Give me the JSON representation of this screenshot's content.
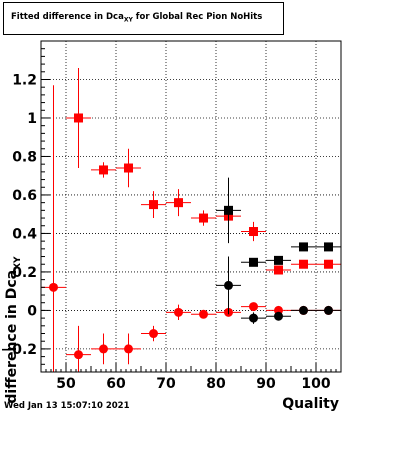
{
  "chart_data": {
    "type": "scatter",
    "title": "Fitted difference in Dca",
    "title_sub": "XY",
    "title_rest": " for Global Rec Pion NoHits",
    "ylabel": "difference in Dca",
    "ylabel_sub": "XY",
    "xlabel": "Quality",
    "xlim": [
      45,
      105
    ],
    "ylim": [
      -0.32,
      1.4
    ],
    "x_ticks": [
      50,
      60,
      70,
      80,
      90,
      100
    ],
    "y_ticks": [
      -0.2,
      0,
      0.2,
      0.4,
      0.6,
      0.8,
      1,
      1.2
    ],
    "y_tick_labels": [
      "−0.2",
      "0",
      "0.2",
      "0.4",
      "0.6",
      "0.8",
      "1",
      "1.2"
    ],
    "grid": true,
    "series": [
      {
        "marker": "square",
        "color": "#ff0000",
        "x": [
          52.5,
          57.5,
          62.5,
          67.5,
          72.5,
          77.5,
          82.5,
          87.5,
          92.5,
          97.5,
          102.5
        ],
        "y": [
          1.0,
          0.73,
          0.74,
          0.55,
          0.56,
          0.48,
          0.49,
          0.41,
          0.21,
          0.24,
          0.24
        ],
        "yerr": [
          0.26,
          0.04,
          0.1,
          0.07,
          0.07,
          0.04,
          0.08,
          0.05,
          0.02,
          0.02,
          0.01
        ]
      },
      {
        "marker": "circle",
        "color": "#ff0000",
        "x": [
          47.5,
          52.5,
          57.5,
          62.5,
          67.5,
          72.5,
          77.5,
          82.5,
          87.5,
          92.5,
          97.5,
          102.5
        ],
        "y": [
          0.12,
          -0.23,
          -0.2,
          -0.2,
          -0.12,
          -0.01,
          -0.02,
          -0.01,
          0.02,
          0.0,
          0.0,
          0.0
        ],
        "yerr": [
          1.05,
          0.15,
          0.08,
          0.08,
          0.04,
          0.04,
          0.02,
          0.01,
          0.01,
          0.01,
          0.01,
          0.01
        ]
      },
      {
        "marker": "square",
        "color": "#000000",
        "x": [
          82.5,
          87.5,
          92.5,
          97.5,
          102.5
        ],
        "y": [
          0.52,
          0.25,
          0.26,
          0.33,
          0.33
        ],
        "yerr": [
          0.17,
          0.02,
          0.02,
          0.01,
          0.01
        ]
      },
      {
        "marker": "circle",
        "color": "#000000",
        "x": [
          82.5,
          87.5,
          92.5,
          97.5,
          102.5
        ],
        "y": [
          0.13,
          -0.04,
          -0.03,
          0.0,
          0.0
        ],
        "yerr": [
          0.15,
          0.03,
          0.01,
          0.01,
          0.01
        ]
      }
    ]
  },
  "footer": {
    "timestamp": "Wed Jan 13 15:07:10 2021"
  }
}
